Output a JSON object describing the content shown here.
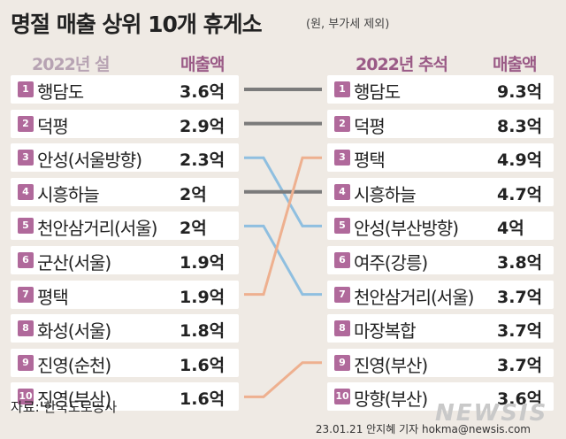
{
  "title": "명절 매출 상위 10개 휴게소",
  "unit_note": "(원, 부가세 제외)",
  "colors": {
    "rank_badge": "#b0699b",
    "header": "#9a5a86",
    "same": "#7b7b7b",
    "down": "#8fbfe0",
    "up": "#eeb08f"
  },
  "chart_data": {
    "type": "table",
    "left": {
      "header": "2022년 설",
      "value_header": "매출액",
      "rows": [
        {
          "rank": "1",
          "name": "행담도",
          "value": "3.6억"
        },
        {
          "rank": "2",
          "name": "덕평",
          "value": "2.9억"
        },
        {
          "rank": "3",
          "name": "안성(서울방향)",
          "value": "2.3억"
        },
        {
          "rank": "4",
          "name": "시흥하늘",
          "value": "2억"
        },
        {
          "rank": "5",
          "name": "천안삼거리(서울)",
          "value": "2억"
        },
        {
          "rank": "6",
          "name": "군산(서울)",
          "value": "1.9억"
        },
        {
          "rank": "7",
          "name": "평택",
          "value": "1.9억"
        },
        {
          "rank": "8",
          "name": "화성(서울)",
          "value": "1.8억"
        },
        {
          "rank": "9",
          "name": "진영(순천)",
          "value": "1.6억"
        },
        {
          "rank": "10",
          "name": "진영(부산)",
          "value": "1.6억"
        }
      ]
    },
    "right": {
      "header": "2022년 추석",
      "value_header": "매출액",
      "rows": [
        {
          "rank": "1",
          "name": "행담도",
          "value": "9.3억"
        },
        {
          "rank": "2",
          "name": "덕평",
          "value": "8.3억"
        },
        {
          "rank": "3",
          "name": "평택",
          "value": "4.9억"
        },
        {
          "rank": "4",
          "name": "시흥하늘",
          "value": "4.7억"
        },
        {
          "rank": "5",
          "name": "안성(부산방향)",
          "value": "4억"
        },
        {
          "rank": "6",
          "name": "여주(강릉)",
          "value": "3.8억"
        },
        {
          "rank": "7",
          "name": "천안삼거리(서울)",
          "value": "3.7억"
        },
        {
          "rank": "8",
          "name": "마장복합",
          "value": "3.7억"
        },
        {
          "rank": "9",
          "name": "진영(부산)",
          "value": "3.7억"
        },
        {
          "rank": "10",
          "name": "망향(부산)",
          "value": "3.6억"
        }
      ]
    },
    "links": [
      {
        "from": 1,
        "to": 1,
        "kind": "same"
      },
      {
        "from": 2,
        "to": 2,
        "kind": "same"
      },
      {
        "from": 3,
        "to": 5,
        "kind": "down"
      },
      {
        "from": 4,
        "to": 4,
        "kind": "same"
      },
      {
        "from": 5,
        "to": 7,
        "kind": "down"
      },
      {
        "from": 7,
        "to": 3,
        "kind": "up"
      },
      {
        "from": 10,
        "to": 9,
        "kind": "up"
      }
    ]
  },
  "source": "자료: 한국도로공사",
  "credit": "23.01.21 안지혜 기자  hokma@newsis.com",
  "logo": "NEWSIS"
}
